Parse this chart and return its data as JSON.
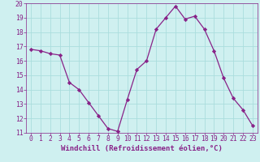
{
  "x": [
    0,
    1,
    2,
    3,
    4,
    5,
    6,
    7,
    8,
    9,
    10,
    11,
    12,
    13,
    14,
    15,
    16,
    17,
    18,
    19,
    20,
    21,
    22,
    23
  ],
  "y": [
    16.8,
    16.7,
    16.5,
    16.4,
    14.5,
    14.0,
    13.1,
    12.2,
    11.3,
    11.1,
    13.3,
    15.4,
    16.0,
    18.2,
    19.0,
    19.8,
    18.9,
    19.1,
    18.2,
    16.7,
    14.8,
    13.4,
    12.6,
    11.5
  ],
  "line_color": "#882288",
  "marker": "D",
  "marker_size": 2.2,
  "bg_color": "#cff0f0",
  "grid_color": "#aadddd",
  "xlabel": "Windchill (Refroidissement éolien,°C)",
  "xlim": [
    -0.5,
    23.5
  ],
  "ylim": [
    11,
    20
  ],
  "yticks": [
    11,
    12,
    13,
    14,
    15,
    16,
    17,
    18,
    19,
    20
  ],
  "xticks": [
    0,
    1,
    2,
    3,
    4,
    5,
    6,
    7,
    8,
    9,
    10,
    11,
    12,
    13,
    14,
    15,
    16,
    17,
    18,
    19,
    20,
    21,
    22,
    23
  ],
  "tick_color": "#882288",
  "label_color": "#882288",
  "xlabel_fontsize": 6.5,
  "tick_fontsize": 5.8,
  "linewidth": 0.9
}
